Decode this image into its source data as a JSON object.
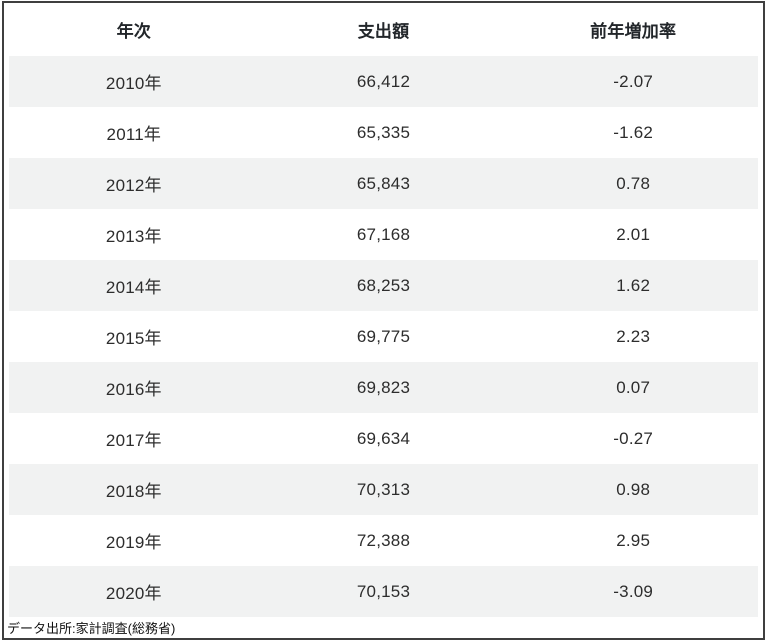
{
  "table": {
    "columns": [
      "年次",
      "支出額",
      "前年増加率"
    ],
    "rows": [
      {
        "year": "2010年",
        "amount": "66,412",
        "rate": "-2.07"
      },
      {
        "year": "2011年",
        "amount": "65,335",
        "rate": "-1.62"
      },
      {
        "year": "2012年",
        "amount": "65,843",
        "rate": "0.78"
      },
      {
        "year": "2013年",
        "amount": "67,168",
        "rate": "2.01"
      },
      {
        "year": "2014年",
        "amount": "68,253",
        "rate": "1.62"
      },
      {
        "year": "2015年",
        "amount": "69,775",
        "rate": "2.23"
      },
      {
        "year": "2016年",
        "amount": "69,823",
        "rate": "0.07"
      },
      {
        "year": "2017年",
        "amount": "69,634",
        "rate": "-0.27"
      },
      {
        "year": "2018年",
        "amount": "70,313",
        "rate": "0.98"
      },
      {
        "year": "2019年",
        "amount": "72,388",
        "rate": "2.95"
      },
      {
        "year": "2020年",
        "amount": "70,153",
        "rate": "-3.09"
      }
    ]
  },
  "footer": {
    "source": "データ出所:家計調査(総務省)"
  },
  "colors": {
    "stripe": "#f1f2f2",
    "border": "#3f3f3f",
    "header_text": "#22262a",
    "body_text": "#2d2d2d",
    "background": "#ffffff"
  },
  "chart_data": {
    "type": "table",
    "columns": [
      "年次",
      "支出額",
      "前年増加率"
    ],
    "categories": [
      "2010年",
      "2011年",
      "2012年",
      "2013年",
      "2014年",
      "2015年",
      "2016年",
      "2017年",
      "2018年",
      "2019年",
      "2020年"
    ],
    "series": [
      {
        "name": "支出額",
        "values": [
          66412,
          65335,
          65843,
          67168,
          68253,
          69775,
          69823,
          69634,
          70313,
          72388,
          70153
        ]
      },
      {
        "name": "前年増加率",
        "values": [
          -2.07,
          -1.62,
          0.78,
          2.01,
          1.62,
          2.23,
          0.07,
          -0.27,
          0.98,
          2.95,
          -3.09
        ]
      }
    ],
    "annotations": [
      "データ出所:家計調査(総務省)"
    ],
    "layout": {
      "striped_rows": true,
      "grid": false,
      "alignment": "center"
    }
  }
}
